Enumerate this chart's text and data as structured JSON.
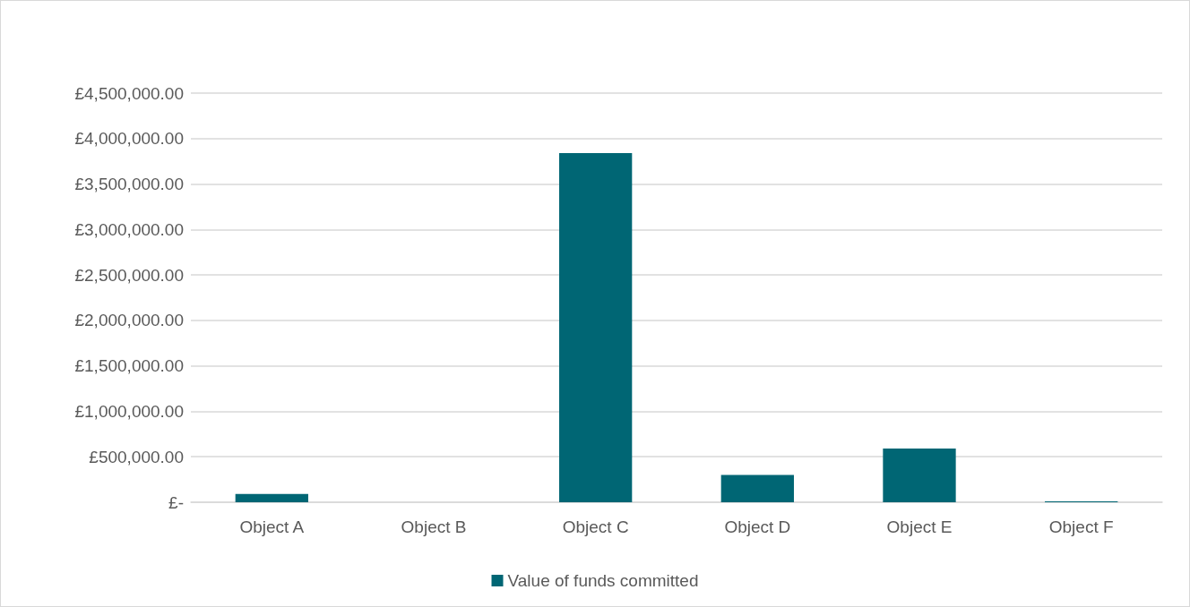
{
  "chart_data": {
    "type": "bar",
    "categories": [
      "Object A",
      "Object B",
      "Object C",
      "Object D",
      "Object E",
      "Object F"
    ],
    "series": [
      {
        "name": "Value of funds committed",
        "color": "#006674",
        "values": [
          90000,
          0,
          3840000,
          300000,
          590000,
          10000
        ]
      }
    ],
    "ylim": [
      0,
      4500000
    ],
    "yticks": [
      {
        "value": 0,
        "label": "£-"
      },
      {
        "value": 500000,
        "label": "£500,000.00"
      },
      {
        "value": 1000000,
        "label": "£1,000,000.00"
      },
      {
        "value": 1500000,
        "label": "£1,500,000.00"
      },
      {
        "value": 2000000,
        "label": "£2,000,000.00"
      },
      {
        "value": 2500000,
        "label": "£2,500,000.00"
      },
      {
        "value": 3000000,
        "label": "£3,000,000.00"
      },
      {
        "value": 3500000,
        "label": "£3,500,000.00"
      },
      {
        "value": 4000000,
        "label": "£4,000,000.00"
      },
      {
        "value": 4500000,
        "label": "£4,500,000.00"
      }
    ],
    "grid": "y",
    "legend": "bottom"
  }
}
